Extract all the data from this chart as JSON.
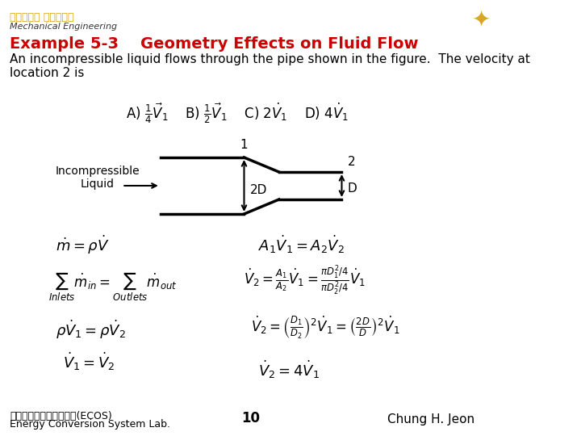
{
  "title": "Example 5-3    Geometry Effects on Fluid Flow",
  "subtitle": "An incompressible liquid flows through the pipe shown in the figure.  The velocity at\nlocation 2 is",
  "title_color": "#CC0000",
  "subtitle_color": "#000000",
  "header_korean": "부산대학교 기계공학부",
  "header_english": "Mechanical Engineering",
  "header_color": "#DAA520",
  "background_color": "#FFFFFF",
  "pipe_label_left": "Incompressible\nLiquid",
  "pipe_label_2D": "2D",
  "pipe_label_D": "D",
  "pipe_label_1": "1",
  "pipe_label_2": "2",
  "footer_korean": "에너지변환시스템연구실(ECOS)",
  "footer_english": "Energy Conversion System Lab.",
  "footer_page": "10",
  "footer_author": "Chung H. Jeon"
}
